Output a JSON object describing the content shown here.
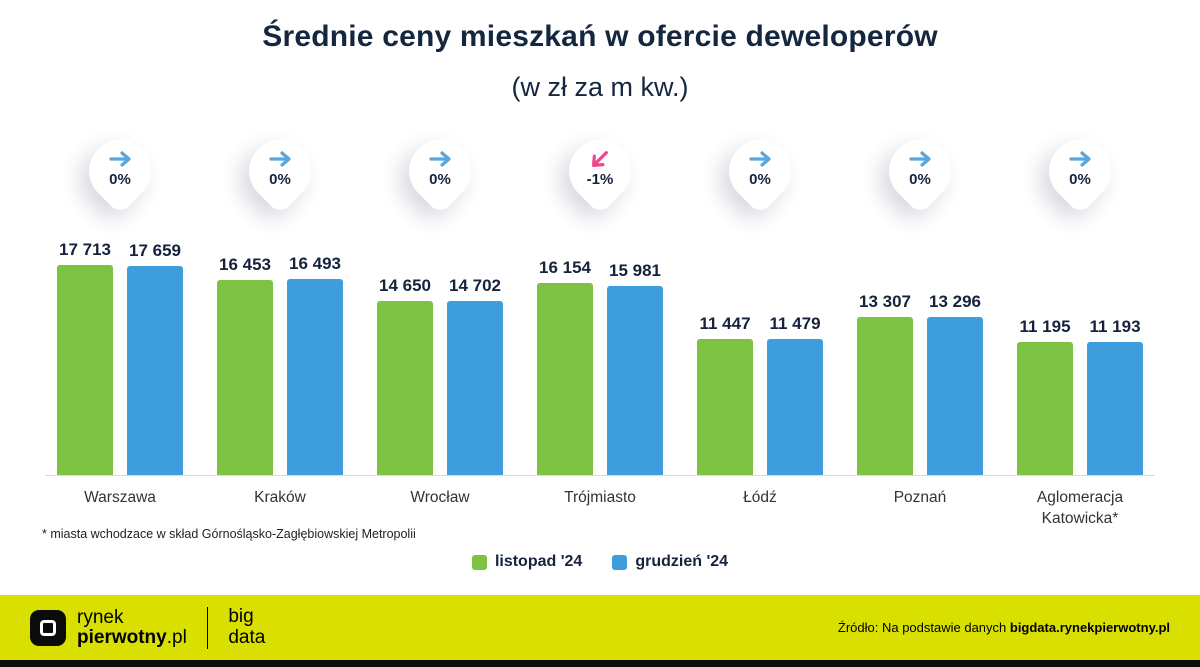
{
  "title": "Średnie ceny mieszkań w ofercie deweloperów",
  "subtitle": "(w zł za m kw.)",
  "chart_data": {
    "type": "bar",
    "categories": [
      "Warszawa",
      "Kraków",
      "Wrocław",
      "Trójmiasto",
      "Łódź",
      "Poznań",
      "Aglomeracja Katowicka*"
    ],
    "series": [
      {
        "name": "listopad '24",
        "color": "#7DC243",
        "values": [
          17713,
          16453,
          14650,
          16154,
          11447,
          13307,
          11195
        ]
      },
      {
        "name": "grudzień '24",
        "color": "#3E9EDB",
        "values": [
          17659,
          16493,
          14702,
          15981,
          11479,
          13296,
          11193
        ]
      }
    ],
    "changes": [
      {
        "label": "0%",
        "direction": "flat"
      },
      {
        "label": "0%",
        "direction": "flat"
      },
      {
        "label": "0%",
        "direction": "flat"
      },
      {
        "label": "-1%",
        "direction": "down"
      },
      {
        "label": "0%",
        "direction": "flat"
      },
      {
        "label": "0%",
        "direction": "flat"
      },
      {
        "label": "0%",
        "direction": "flat"
      }
    ],
    "ylim": [
      0,
      17713
    ],
    "grid": false,
    "legend_position": "bottom"
  },
  "colors": {
    "arrow_flat": "#58A7DE",
    "arrow_down": "#F0458D",
    "title_text": "#15263F",
    "footer_background": "#D9E000"
  },
  "footnote": "* miasta wchodzace w skład Górnośląsko-Zagłębiowskiej Metropolii",
  "footer": {
    "brand_line1": "rynek",
    "brand_line2_bold": "pierwotny",
    "brand_line2_suffix": ".pl",
    "bigdata_line1": "big",
    "bigdata_line2": "data",
    "source_prefix": "Źródło: Na podstawie danych ",
    "source_bold": "bigdata.rynekpierwotny.pl"
  }
}
